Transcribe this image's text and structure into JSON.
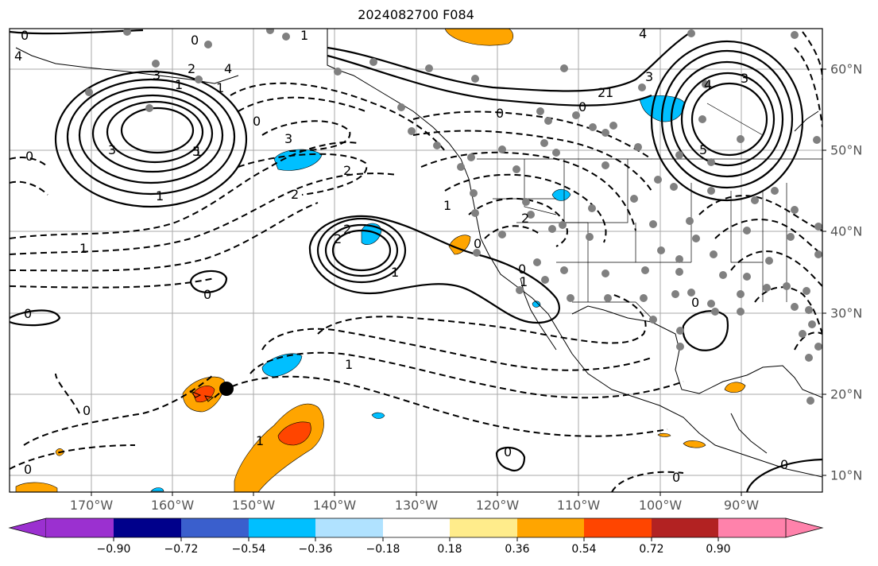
{
  "title": "2024082700 F084",
  "lon_labels": [
    "170°W",
    "160°W",
    "150°W",
    "140°W",
    "130°W",
    "120°W",
    "110°W",
    "100°W",
    "90°W"
  ],
  "lat_labels": [
    "10°N",
    "20°N",
    "30°N",
    "40°N",
    "50°N",
    "60°N"
  ],
  "colorbar": {
    "tick_labels": [
      "−0.90",
      "−0.72",
      "−0.54",
      "−0.36",
      "−0.18",
      "0.18",
      "0.36",
      "0.54",
      "0.72",
      "0.90"
    ],
    "colors": [
      "#9b30d0",
      "#00008b",
      "#3a5fcd",
      "#00bfff",
      "#b0e2ff",
      "#ffffff",
      "#ffec8b",
      "#ffa500",
      "#ff4500",
      "#b22222",
      "#ff82ab"
    ]
  },
  "contour_labels": [
    "0",
    "1",
    "0",
    "4",
    "3",
    "1",
    "2",
    "1",
    "0",
    "3",
    "0",
    "1",
    "1",
    "0",
    "1",
    "0",
    "4",
    "5",
    "0",
    "1",
    "0",
    "2",
    "2",
    "2",
    "3",
    "2",
    "2",
    "0",
    "1",
    "1",
    "2",
    "0",
    "1",
    "0",
    "0",
    "1",
    "0",
    "1",
    "0",
    "0",
    "0",
    "3",
    "4",
    "4",
    "3",
    "5"
  ]
}
